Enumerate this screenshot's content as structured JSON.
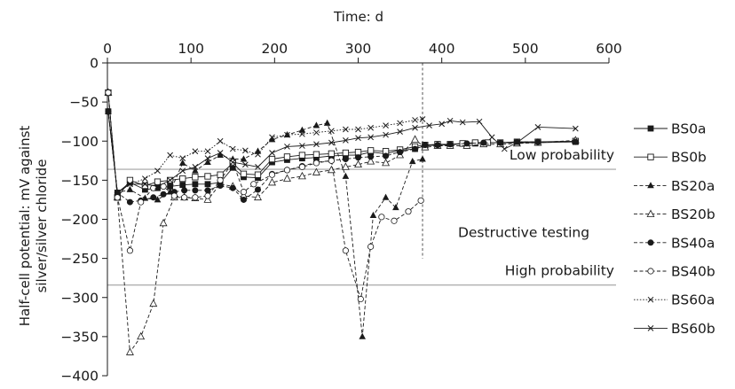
{
  "chart_data": {
    "type": "line",
    "xlabel": "Time: d",
    "ylabel": [
      "Half-cell potential: mV against",
      "silver/silver chloride"
    ],
    "xlim": [
      0,
      600
    ],
    "ylim": [
      -400,
      0
    ],
    "x_ticks": [
      0,
      100,
      200,
      300,
      400,
      500,
      600
    ],
    "y_ticks": [
      0,
      -50,
      -100,
      -150,
      -200,
      -250,
      -300,
      -350,
      -400
    ],
    "x_axis_position": "top",
    "grid": false,
    "legend_position": "right",
    "thresholds": [
      {
        "label": "Low probability",
        "y": -136,
        "color": "#b3b3b3"
      },
      {
        "label": "High probability",
        "y": -284,
        "color": "#b3b3b3"
      }
    ],
    "vertical_marker": {
      "label": "Destructive testing",
      "x": 377,
      "y_from": 0,
      "y_to": -250
    },
    "series": [
      {
        "name": "BS0a",
        "line": "solid",
        "marker": "filled-square",
        "x": [
          1,
          12,
          27,
          45,
          60,
          75,
          90,
          105,
          120,
          135,
          150,
          163,
          180,
          197,
          215,
          233,
          250,
          268,
          285,
          300,
          315,
          333,
          350,
          368,
          380,
          395,
          410,
          425,
          440,
          455,
          470,
          490,
          515,
          560
        ],
        "y": [
          -62,
          -166,
          -153,
          -162,
          -160,
          -158,
          -156,
          -155,
          -155,
          -153,
          -134,
          -146,
          -147,
          -127,
          -124,
          -122,
          -121,
          -119,
          -118,
          -118,
          -114,
          -116,
          -112,
          -110,
          -106,
          -105,
          -105,
          -103,
          -103,
          -102,
          -102,
          -102,
          -102,
          -101
        ]
      },
      {
        "name": "BS0b",
        "line": "solid",
        "marker": "open-square",
        "x": [
          1,
          12,
          27,
          45,
          60,
          75,
          90,
          105,
          120,
          135,
          150,
          163,
          180,
          197,
          215,
          233,
          250,
          268,
          285,
          300,
          315,
          333,
          350,
          368,
          380,
          395,
          410,
          425,
          440,
          455,
          470,
          490,
          515,
          560
        ],
        "y": [
          -38,
          -172,
          -150,
          -157,
          -152,
          -150,
          -148,
          -146,
          -145,
          -143,
          -128,
          -142,
          -143,
          -123,
          -120,
          -118,
          -117,
          -116,
          -115,
          -114,
          -112,
          -113,
          -111,
          -107,
          -105,
          -104,
          -104,
          -103,
          -102,
          -102,
          -102,
          -101,
          -101,
          -100
        ]
      },
      {
        "name": "BS20a",
        "line": "dashed",
        "marker": "filled-triangle",
        "x": [
          1,
          12,
          27,
          45,
          60,
          75,
          90,
          105,
          120,
          135,
          150,
          163,
          180,
          197,
          215,
          233,
          250,
          263,
          285,
          305,
          318,
          333,
          345,
          365,
          377
        ],
        "y": [
          -62,
          -166,
          -162,
          -173,
          -175,
          -165,
          -128,
          -138,
          -127,
          -118,
          -123,
          -123,
          -113,
          -98,
          -92,
          -86,
          -80,
          -77,
          -145,
          -350,
          -195,
          -172,
          -185,
          -126,
          -123
        ]
      },
      {
        "name": "BS20b",
        "line": "dashed",
        "marker": "open-triangle",
        "x": [
          1,
          12,
          27,
          40,
          55,
          67,
          80,
          92,
          105,
          120,
          135,
          150,
          163,
          180,
          197,
          215,
          233,
          250,
          268,
          285,
          300,
          315,
          333,
          350,
          368,
          380,
          395,
          410,
          430,
          450,
          470,
          490,
          515,
          560
        ],
        "y": [
          -38,
          -172,
          -370,
          -350,
          -308,
          -205,
          -172,
          -172,
          -173,
          -175,
          -155,
          -158,
          -170,
          -172,
          -153,
          -148,
          -145,
          -140,
          -137,
          -133,
          -130,
          -126,
          -128,
          -118,
          -98,
          -108,
          -106,
          -106,
          -106,
          -104,
          -104,
          -103,
          -102,
          -99
        ]
      },
      {
        "name": "BS40a",
        "line": "dashed",
        "marker": "filled-circle",
        "x": [
          1,
          12,
          27,
          40,
          55,
          67,
          80,
          92,
          105,
          120,
          135,
          150,
          163,
          180,
          197,
          215,
          233,
          250,
          268,
          285,
          300,
          315,
          333,
          350,
          368,
          380,
          395,
          410,
          430,
          450,
          470,
          490,
          515,
          560
        ],
        "y": [
          -62,
          -166,
          -178,
          -176,
          -172,
          -168,
          -165,
          -163,
          -163,
          -163,
          -157,
          -160,
          -175,
          -162,
          -142,
          -137,
          -132,
          -127,
          -125,
          -123,
          -121,
          -120,
          -119,
          -114,
          -110,
          -105,
          -105,
          -104,
          -103,
          -102,
          -102,
          -101,
          -101,
          -101
        ]
      },
      {
        "name": "BS40b",
        "line": "dashed",
        "marker": "open-circle",
        "x": [
          1,
          12,
          27,
          40,
          55,
          67,
          80,
          92,
          105,
          120,
          135,
          150,
          163,
          175,
          197,
          215,
          233,
          250,
          268,
          285,
          303,
          315,
          328,
          343,
          360,
          375
        ],
        "y": [
          -38,
          -172,
          -240,
          -178,
          -160,
          -158,
          -170,
          -172,
          -172,
          -170,
          -150,
          -127,
          -165,
          -155,
          -143,
          -137,
          -133,
          -128,
          -125,
          -240,
          -302,
          -235,
          -197,
          -202,
          -190,
          -176
        ]
      },
      {
        "name": "BS60a",
        "line": "dotted",
        "marker": "x",
        "x": [
          1,
          12,
          27,
          45,
          60,
          75,
          90,
          105,
          120,
          135,
          150,
          165,
          180,
          197,
          215,
          233,
          250,
          268,
          285,
          300,
          315,
          333,
          350,
          368,
          377
        ],
        "y": [
          -62,
          -166,
          -155,
          -148,
          -138,
          -118,
          -122,
          -113,
          -113,
          -100,
          -110,
          -112,
          -117,
          -95,
          -92,
          -91,
          -89,
          -87,
          -85,
          -85,
          -83,
          -80,
          -77,
          -73,
          -72
        ]
      },
      {
        "name": "BS60b",
        "line": "solid",
        "marker": "x",
        "x": [
          1,
          12,
          27,
          45,
          60,
          75,
          90,
          105,
          120,
          135,
          150,
          165,
          180,
          197,
          215,
          233,
          250,
          268,
          285,
          300,
          315,
          333,
          350,
          368,
          385,
          400,
          410,
          425,
          445,
          460,
          475,
          490,
          515,
          560
        ],
        "y": [
          -62,
          -166,
          -155,
          -155,
          -158,
          -150,
          -138,
          -133,
          -122,
          -115,
          -127,
          -130,
          -133,
          -115,
          -107,
          -106,
          -104,
          -102,
          -99,
          -96,
          -95,
          -92,
          -88,
          -83,
          -80,
          -78,
          -74,
          -76,
          -75,
          -95,
          -110,
          -102,
          -82,
          -84
        ]
      }
    ]
  }
}
